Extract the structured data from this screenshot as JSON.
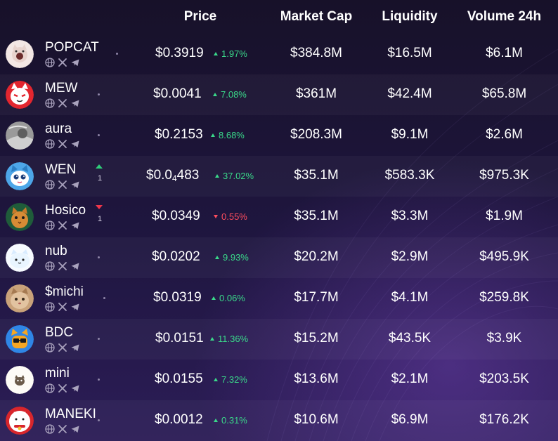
{
  "header": {
    "price": "Price",
    "market_cap": "Market Cap",
    "liquidity": "Liquidity",
    "volume": "Volume 24h"
  },
  "rows": [
    {
      "name": "POPCAT",
      "price_main": "$0.3919",
      "price_sub": "",
      "price_tail": "",
      "change": "1.97%",
      "change_dir": "up",
      "market_cap": "$384.8M",
      "liquidity": "$16.5M",
      "volume": "$6.1M",
      "trend": null,
      "avatar_icon": "popcat-avatar-icon"
    },
    {
      "name": "MEW",
      "price_main": "$0.0041",
      "price_sub": "",
      "price_tail": "",
      "change": "7.08%",
      "change_dir": "up",
      "market_cap": "$361M",
      "liquidity": "$42.4M",
      "volume": "$65.8M",
      "trend": null,
      "avatar_icon": "mew-avatar-icon"
    },
    {
      "name": "aura",
      "price_main": "$0.2153",
      "price_sub": "",
      "price_tail": "",
      "change": "8.68%",
      "change_dir": "up",
      "market_cap": "$208.3M",
      "liquidity": "$9.1M",
      "volume": "$2.6M",
      "trend": null,
      "avatar_icon": "aura-avatar-icon"
    },
    {
      "name": "WEN",
      "price_main": "$0.0",
      "price_sub": "4",
      "price_tail": "483",
      "change": "37.02%",
      "change_dir": "up",
      "market_cap": "$35.1M",
      "liquidity": "$583.3K",
      "volume": "$975.3K",
      "trend": {
        "dir": "up",
        "count": "1"
      },
      "avatar_icon": "wen-avatar-icon"
    },
    {
      "name": "Hosico",
      "price_main": "$0.0349",
      "price_sub": "",
      "price_tail": "",
      "change": "0.55%",
      "change_dir": "down",
      "market_cap": "$35.1M",
      "liquidity": "$3.3M",
      "volume": "$1.9M",
      "trend": {
        "dir": "down",
        "count": "1"
      },
      "avatar_icon": "hosico-avatar-icon"
    },
    {
      "name": "nub",
      "price_main": "$0.0202",
      "price_sub": "",
      "price_tail": "",
      "change": "9.93%",
      "change_dir": "up",
      "market_cap": "$20.2M",
      "liquidity": "$2.9M",
      "volume": "$495.9K",
      "trend": null,
      "avatar_icon": "nub-avatar-icon"
    },
    {
      "name": "$michi",
      "price_main": "$0.0319",
      "price_sub": "",
      "price_tail": "",
      "change": "0.06%",
      "change_dir": "up",
      "market_cap": "$17.7M",
      "liquidity": "$4.1M",
      "volume": "$259.8K",
      "trend": null,
      "avatar_icon": "michi-avatar-icon"
    },
    {
      "name": "BDC",
      "price_main": "$0.0151",
      "price_sub": "",
      "price_tail": "",
      "change": "11.36%",
      "change_dir": "up",
      "market_cap": "$15.2M",
      "liquidity": "$43.5K",
      "volume": "$3.9K",
      "trend": null,
      "avatar_icon": "bdc-avatar-icon"
    },
    {
      "name": "mini",
      "price_main": "$0.0155",
      "price_sub": "",
      "price_tail": "",
      "change": "7.32%",
      "change_dir": "up",
      "market_cap": "$13.6M",
      "liquidity": "$2.1M",
      "volume": "$203.5K",
      "trend": null,
      "avatar_icon": "mini-avatar-icon"
    },
    {
      "name": "MANEKI",
      "price_main": "$0.0012",
      "price_sub": "",
      "price_tail": "",
      "change": "0.31%",
      "change_dir": "up",
      "market_cap": "$10.6M",
      "liquidity": "$6.9M",
      "volume": "$176.2K",
      "trend": null,
      "avatar_icon": "maneki-avatar-icon"
    }
  ],
  "social_icons": [
    "globe-icon",
    "x-icon",
    "telegram-icon"
  ],
  "colors": {
    "background": "#1a1333",
    "up": "#3ad98a",
    "down": "#ff4d5e",
    "text": "#ffffff",
    "muted": "#8f86a8"
  }
}
